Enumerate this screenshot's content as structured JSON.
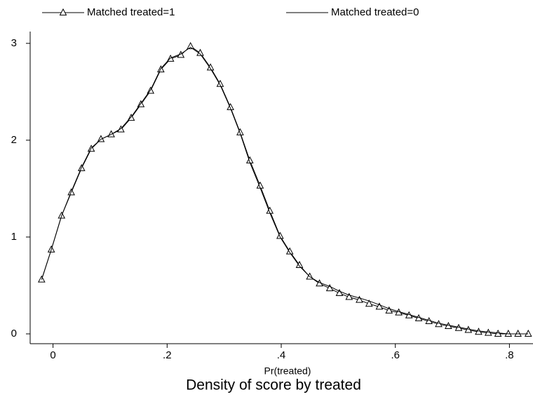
{
  "chart_data": {
    "type": "line",
    "title": "Density of score by treated",
    "x_label": "Pr(treated)",
    "x": [
      -0.02,
      -0.003,
      0.015,
      0.032,
      0.05,
      0.067,
      0.084,
      0.102,
      0.119,
      0.137,
      0.154,
      0.171,
      0.189,
      0.206,
      0.224,
      0.241,
      0.258,
      0.276,
      0.293,
      0.311,
      0.328,
      0.345,
      0.363,
      0.38,
      0.398,
      0.415,
      0.432,
      0.45,
      0.467,
      0.485,
      0.502,
      0.519,
      0.537,
      0.554,
      0.572,
      0.589,
      0.606,
      0.624,
      0.641,
      0.659,
      0.676,
      0.693,
      0.711,
      0.728,
      0.746,
      0.763,
      0.78,
      0.798,
      0.815,
      0.833
    ],
    "series": [
      {
        "name": "Matched treated=1",
        "color": "#000000",
        "marker": "triangle",
        "values": [
          0.56,
          0.87,
          1.22,
          1.46,
          1.71,
          1.91,
          2.01,
          2.06,
          2.11,
          2.23,
          2.37,
          2.51,
          2.73,
          2.84,
          2.88,
          2.97,
          2.9,
          2.75,
          2.58,
          2.34,
          2.08,
          1.79,
          1.53,
          1.27,
          1.01,
          0.85,
          0.71,
          0.59,
          0.52,
          0.47,
          0.42,
          0.38,
          0.35,
          0.31,
          0.28,
          0.24,
          0.22,
          0.19,
          0.16,
          0.13,
          0.1,
          0.08,
          0.06,
          0.04,
          0.02,
          0.01,
          0,
          0,
          0,
          0
        ]
      },
      {
        "name": "Matched treated=0",
        "color": "#000000",
        "marker": "none",
        "values": [
          0.56,
          0.87,
          1.22,
          1.47,
          1.72,
          1.92,
          2.01,
          2.06,
          2.12,
          2.24,
          2.38,
          2.52,
          2.74,
          2.85,
          2.89,
          2.96,
          2.89,
          2.74,
          2.57,
          2.33,
          2.07,
          1.77,
          1.51,
          1.25,
          1.0,
          0.84,
          0.7,
          0.59,
          0.53,
          0.49,
          0.44,
          0.4,
          0.37,
          0.34,
          0.3,
          0.26,
          0.23,
          0.2,
          0.17,
          0.14,
          0.11,
          0.09,
          0.07,
          0.05,
          0.03,
          0.02,
          0.01,
          0,
          0,
          0
        ]
      }
    ],
    "xlim": [
      -0.045,
      0.845
    ],
    "xticks": [
      {
        "value": 0,
        "label": "0"
      },
      {
        "value": 0.2,
        "label": ".2"
      },
      {
        "value": 0.4,
        "label": ".4"
      },
      {
        "value": 0.6,
        "label": ".6"
      },
      {
        "value": 0.8,
        "label": ".8"
      }
    ],
    "ylim": [
      0,
      3.1
    ],
    "yticks": [
      0,
      1,
      2,
      3
    ],
    "grid": false,
    "legend": "top"
  }
}
